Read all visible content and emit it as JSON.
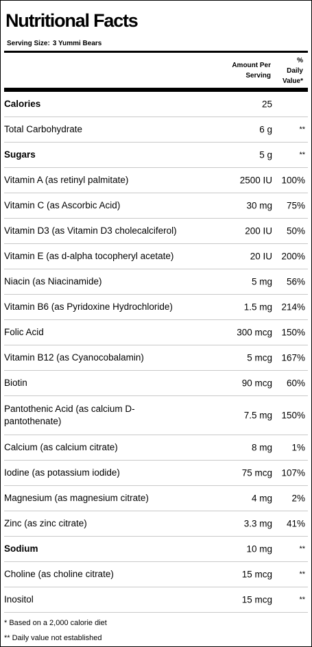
{
  "title": "Nutritional Facts",
  "serving_label": "Serving Size:",
  "serving_value": "3 Yummi Bears",
  "header": {
    "amount_line1": "Amount Per",
    "amount_line2": "Serving",
    "dv_line1": "%",
    "dv_line2": "Daily",
    "dv_line3": "Value*"
  },
  "rows": [
    {
      "name": "Calories",
      "amount": "25",
      "dv": "",
      "bold": true
    },
    {
      "name": "Total Carbohydrate",
      "amount": "6 g",
      "dv": "**",
      "bold": false
    },
    {
      "name": "Sugars",
      "amount": "5 g",
      "dv": "**",
      "bold": true
    },
    {
      "name": "Vitamin A (as retinyl palmitate)",
      "amount": "2500 IU",
      "dv": "100%",
      "bold": false
    },
    {
      "name": "Vitamin C (as Ascorbic Acid)",
      "amount": "30 mg",
      "dv": "75%",
      "bold": false
    },
    {
      "name": "Vitamin D3 (as Vitamin D3 cholecalciferol)",
      "amount": "200 IU",
      "dv": "50%",
      "bold": false
    },
    {
      "name": "Vitamin E (as d-alpha tocopheryl acetate)",
      "amount": "20 IU",
      "dv": "200%",
      "bold": false
    },
    {
      "name": "Niacin (as Niacinamide)",
      "amount": "5 mg",
      "dv": "56%",
      "bold": false
    },
    {
      "name": "Vitamin B6 (as Pyridoxine Hydrochloride)",
      "amount": "1.5 mg",
      "dv": "214%",
      "bold": false
    },
    {
      "name": "Folic Acid",
      "amount": "300 mcg",
      "dv": "150%",
      "bold": false
    },
    {
      "name": "Vitamin B12 (as Cyanocobalamin)",
      "amount": "5 mcg",
      "dv": "167%",
      "bold": false
    },
    {
      "name": "Biotin",
      "amount": "90 mcg",
      "dv": "60%",
      "bold": false
    },
    {
      "name": "Pantothenic Acid (as calcium D-pantothenate)",
      "amount": "7.5 mg",
      "dv": "150%",
      "bold": false,
      "tall": true
    },
    {
      "name": "Calcium (as calcium citrate)",
      "amount": "8 mg",
      "dv": "1%",
      "bold": false
    },
    {
      "name": "Iodine (as potassium iodide)",
      "amount": "75 mcg",
      "dv": "107%",
      "bold": false
    },
    {
      "name": "Magnesium (as magnesium citrate)",
      "amount": "4 mg",
      "dv": "2%",
      "bold": false
    },
    {
      "name": "Zinc (as zinc citrate)",
      "amount": "3.3 mg",
      "dv": "41%",
      "bold": false
    },
    {
      "name": "Sodium",
      "amount": "10 mg",
      "dv": "**",
      "bold": true
    },
    {
      "name": "Choline (as choline citrate)",
      "amount": "15 mcg",
      "dv": "**",
      "bold": false
    },
    {
      "name": "Inositol",
      "amount": "15 mcg",
      "dv": "**",
      "bold": false
    }
  ],
  "footnotes": [
    "* Based on a 2,000 calorie diet",
    "** Daily value not established"
  ]
}
